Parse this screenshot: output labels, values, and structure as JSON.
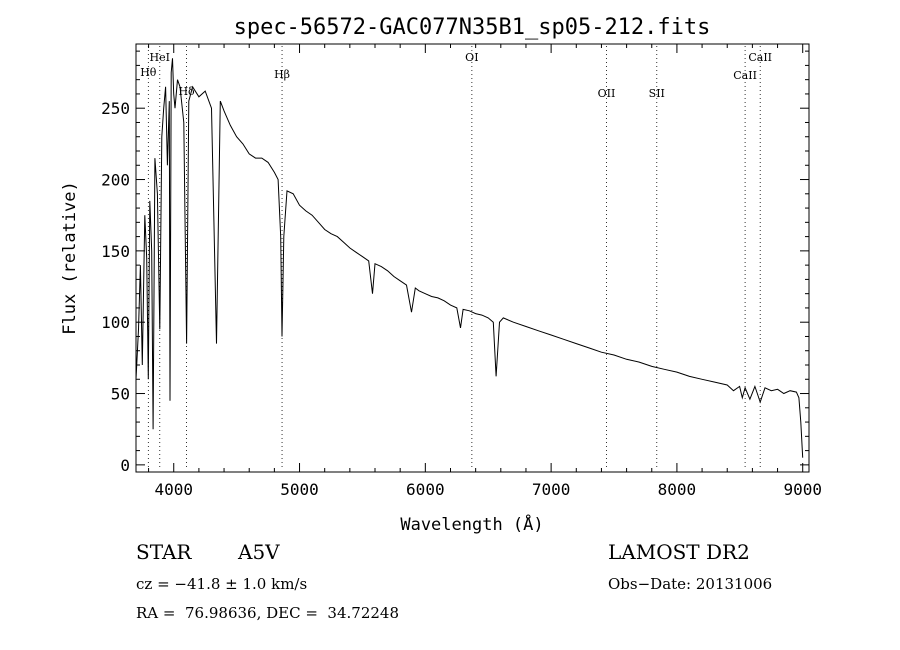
{
  "chart_data": {
    "type": "line",
    "title": "spec-56572-GAC077N35B1_sp05-212.fits",
    "xlabel": "Wavelength (Å)",
    "ylabel": "Flux (relative)",
    "xlim": [
      3700,
      9050
    ],
    "ylim": [
      -5,
      295
    ],
    "xticks": [
      4000,
      5000,
      6000,
      7000,
      8000,
      9000
    ],
    "xtick_labels": [
      "4000",
      "5000",
      "6000",
      "7000",
      "8000",
      "9000"
    ],
    "yticks": [
      0,
      50,
      100,
      150,
      200,
      250
    ],
    "ytick_labels": [
      "0",
      "50",
      "100",
      "150",
      "200",
      "250"
    ],
    "grid": false,
    "series": [
      {
        "name": "spectrum",
        "x": [
          3700,
          3720,
          3735,
          3750,
          3770,
          3785,
          3798,
          3810,
          3825,
          3836,
          3850,
          3870,
          3889,
          3905,
          3920,
          3935,
          3950,
          3965,
          3970,
          3980,
          3990,
          4000,
          4010,
          4030,
          4050,
          4080,
          4102,
          4120,
          4150,
          4200,
          4250,
          4300,
          4340,
          4370,
          4400,
          4450,
          4500,
          4550,
          4600,
          4650,
          4700,
          4750,
          4800,
          4830,
          4850,
          4861,
          4875,
          4900,
          4950,
          5000,
          5050,
          5100,
          5150,
          5200,
          5250,
          5300,
          5350,
          5400,
          5450,
          5500,
          5550,
          5580,
          5600,
          5650,
          5700,
          5750,
          5800,
          5850,
          5890,
          5920,
          5950,
          6000,
          6050,
          6100,
          6150,
          6200,
          6250,
          6280,
          6300,
          6350,
          6400,
          6450,
          6500,
          6540,
          6563,
          6590,
          6620,
          6700,
          6800,
          6900,
          7000,
          7100,
          7200,
          7300,
          7400,
          7500,
          7600,
          7700,
          7800,
          7900,
          8000,
          8100,
          8200,
          8300,
          8400,
          8450,
          8498,
          8520,
          8542,
          8580,
          8620,
          8662,
          8700,
          8750,
          8800,
          8850,
          8900,
          8950,
          8970,
          8985,
          9000
        ],
        "values": [
          60,
          95,
          140,
          70,
          175,
          145,
          60,
          185,
          150,
          25,
          215,
          190,
          95,
          230,
          250,
          265,
          210,
          255,
          45,
          275,
          285,
          260,
          250,
          270,
          265,
          240,
          85,
          255,
          265,
          258,
          262,
          250,
          85,
          255,
          248,
          238,
          230,
          225,
          218,
          215,
          215,
          212,
          205,
          200,
          160,
          90,
          160,
          192,
          190,
          182,
          178,
          175,
          170,
          165,
          162,
          160,
          156,
          152,
          149,
          146,
          143,
          120,
          141,
          139,
          136,
          132,
          129,
          126,
          107,
          124,
          122,
          120,
          118,
          117,
          115,
          112,
          110,
          96,
          109,
          108,
          106,
          105,
          103,
          100,
          62,
          100,
          103,
          100,
          97,
          94,
          91,
          88,
          85,
          82,
          79,
          77,
          74,
          72,
          69,
          67,
          65,
          62,
          60,
          58,
          56,
          52,
          55,
          47,
          54,
          46,
          55,
          44,
          54,
          52,
          53,
          50,
          52,
          51,
          47,
          30,
          5
        ]
      }
    ],
    "annotations": [
      {
        "label": "Hθ",
        "x": 3798
      },
      {
        "label": "HeI",
        "x": 3889
      },
      {
        "label": "Hδ",
        "x": 4102
      },
      {
        "label": "Hβ",
        "x": 4861
      },
      {
        "label": "OI",
        "x": 6370
      },
      {
        "label": "OII",
        "x": 7440
      },
      {
        "label": "SII",
        "x": 7840
      },
      {
        "label": "CaII",
        "x": 8542
      },
      {
        "label": "CaII",
        "x": 8662
      }
    ]
  },
  "info": {
    "object_class": "STAR",
    "subclass": "A5V",
    "survey": "LAMOST DR2",
    "cz": "cz = −41.8 ± 1.0 km/s",
    "obs_date": "Obs−Date: 20131006",
    "coords": "RA =  76.98636, DEC =  34.72248"
  }
}
